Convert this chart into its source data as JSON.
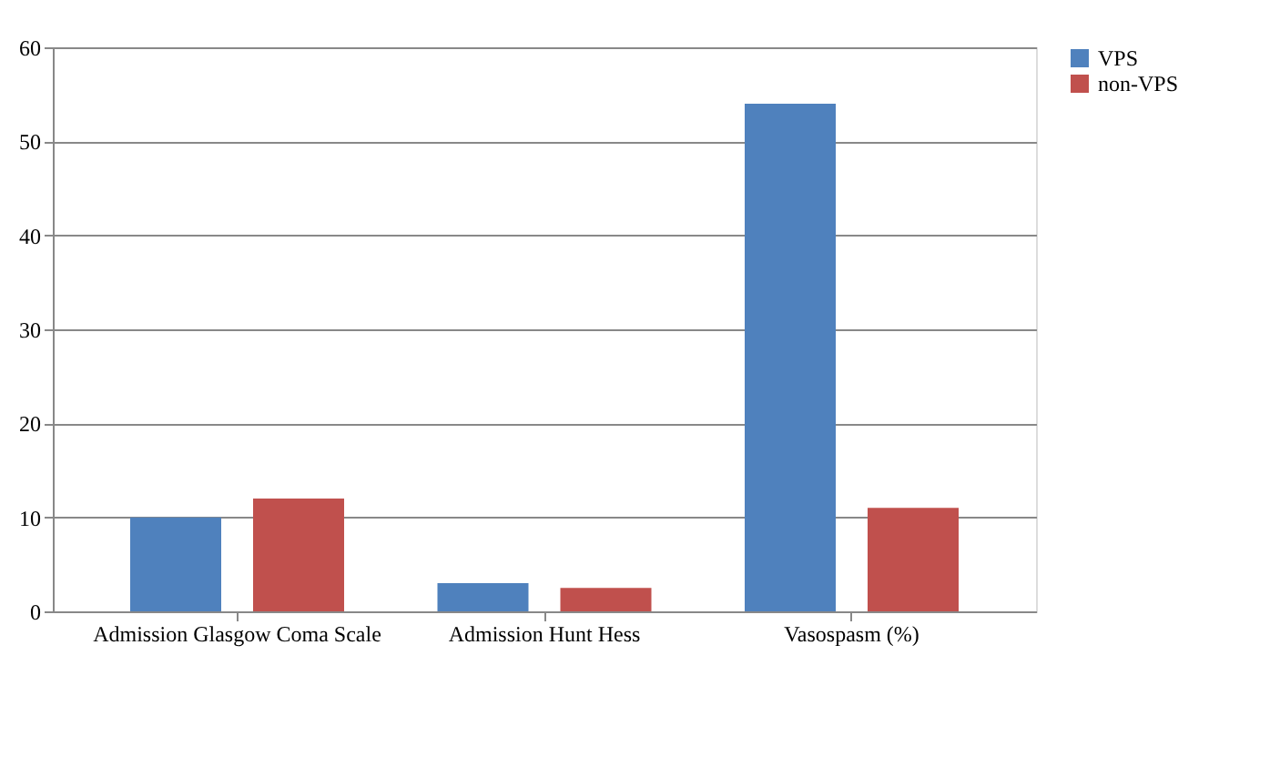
{
  "chart_data": {
    "type": "bar",
    "categories": [
      "Admission Glasgow Coma Scale",
      "Admission Hunt Hess",
      "Vasospasm (%)"
    ],
    "series": [
      {
        "name": "VPS",
        "color": "#4f81bd",
        "values": [
          10,
          3,
          54
        ]
      },
      {
        "name": "non-VPS",
        "color": "#c0504d",
        "values": [
          12,
          2.5,
          11
        ]
      }
    ],
    "ylim": [
      0,
      60
    ],
    "yticks": [
      0,
      10,
      20,
      30,
      40,
      50,
      60
    ],
    "grid": "y",
    "legend": "right"
  }
}
